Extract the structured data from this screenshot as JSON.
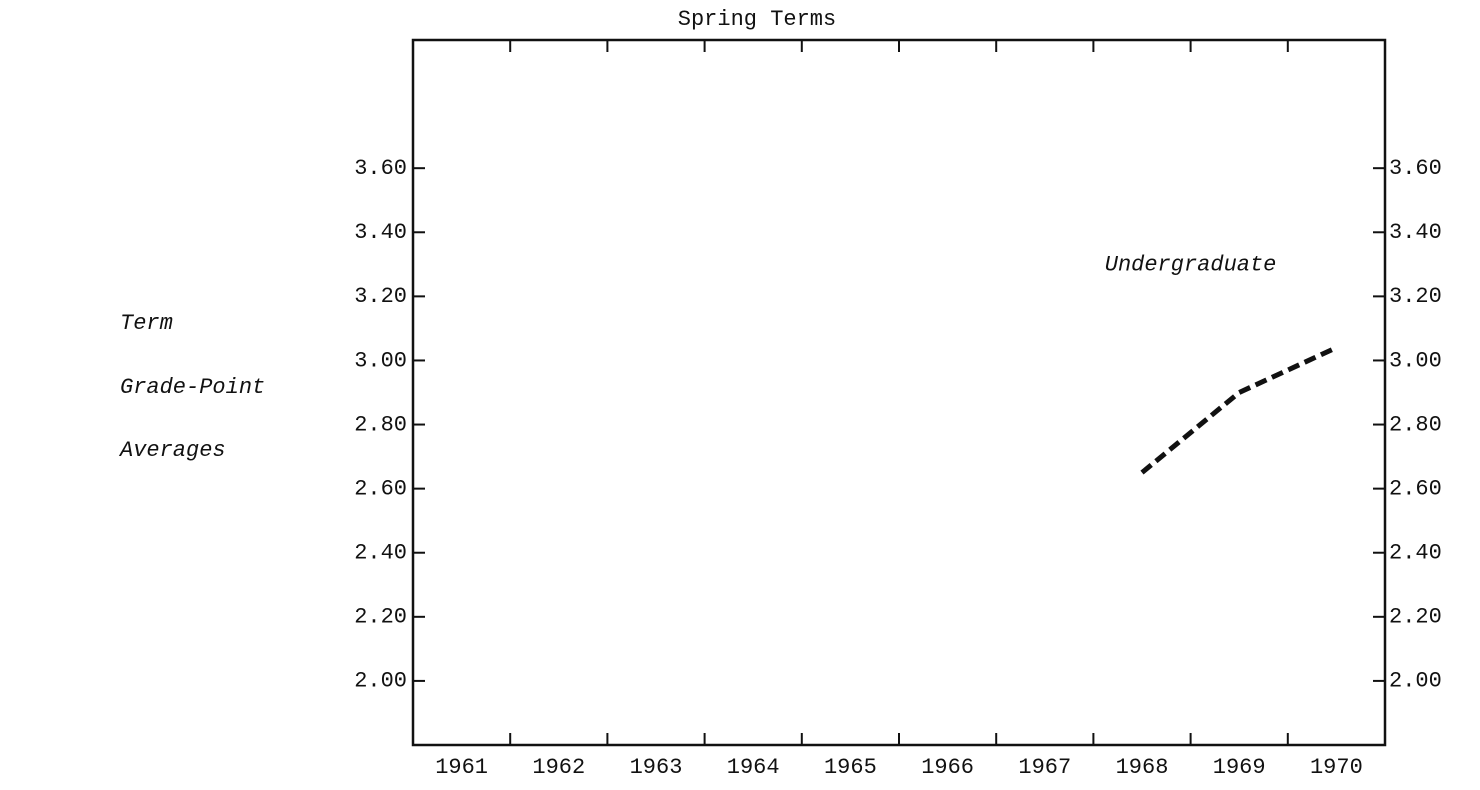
{
  "chart_data": {
    "type": "line",
    "title": "Spring Terms",
    "y_label": [
      "Term",
      "Grade-Point",
      "Averages"
    ],
    "categories": [
      "1961",
      "1962",
      "1963",
      "1964",
      "1965",
      "1966",
      "1967",
      "1968",
      "1969",
      "1970"
    ],
    "series": [
      {
        "name": "Undergraduate",
        "color": "#111111",
        "values": [
          null,
          null,
          null,
          null,
          null,
          null,
          null,
          2.65,
          2.9,
          3.04
        ]
      }
    ],
    "ylim": [
      1.8,
      4.0
    ],
    "yticks": [
      {
        "value": 2.0,
        "label": "2.00"
      },
      {
        "value": 2.2,
        "label": "2.20"
      },
      {
        "value": 2.4,
        "label": "2.40"
      },
      {
        "value": 2.6,
        "label": "2.60"
      },
      {
        "value": 2.8,
        "label": "2.80"
      },
      {
        "value": 3.0,
        "label": "3.00"
      },
      {
        "value": 3.2,
        "label": "3.20"
      },
      {
        "value": 3.4,
        "label": "3.40"
      },
      {
        "value": 3.6,
        "label": "3.60"
      }
    ],
    "grid": false
  }
}
